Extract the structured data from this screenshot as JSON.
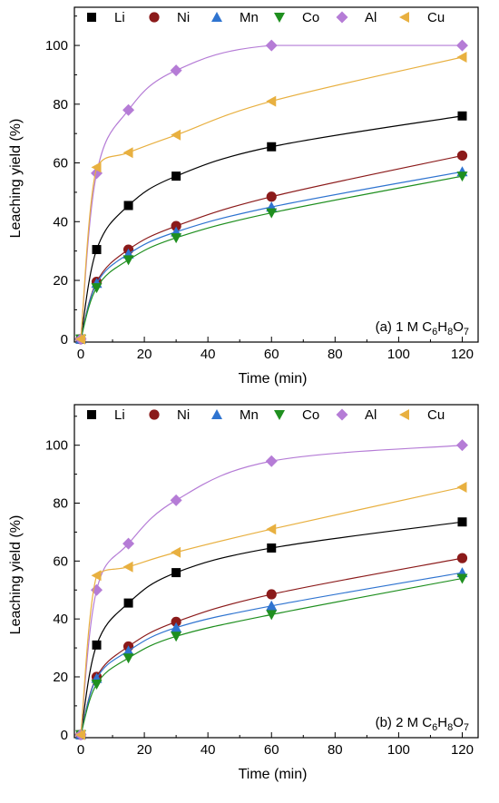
{
  "chart_data": [
    {
      "type": "scatter",
      "panel": "a",
      "annotation": {
        "prefix": "(a) 1 M C",
        "subs": [
          "6",
          "8",
          "7"
        ],
        "letters": [
          "H",
          "O"
        ]
      },
      "xlabel": "Time (min)",
      "ylabel": "Leaching yield (%)",
      "xlim": [
        -2,
        125
      ],
      "ylim": [
        -1,
        113
      ],
      "xticks": [
        0,
        20,
        40,
        60,
        80,
        100,
        120
      ],
      "yticks": [
        0,
        20,
        40,
        60,
        80,
        100
      ],
      "fit_lines": true,
      "legend_position": "top",
      "x": [
        0,
        5,
        15,
        30,
        60,
        120
      ],
      "series": [
        {
          "name": "Li",
          "marker": "square",
          "color": "#000000",
          "values": [
            0,
            30.5,
            45.5,
            55.5,
            65.5,
            76
          ]
        },
        {
          "name": "Ni",
          "marker": "circle",
          "color": "#8b1a1a",
          "values": [
            0,
            19.5,
            30.5,
            38.5,
            48.5,
            62.5
          ]
        },
        {
          "name": "Mn",
          "marker": "triangle-up",
          "color": "#2f74d0",
          "values": [
            0,
            19,
            29,
            36.5,
            45,
            57
          ]
        },
        {
          "name": "Co",
          "marker": "triangle-down",
          "color": "#1f8f1f",
          "values": [
            0,
            17.5,
            27,
            34.5,
            43,
            55.5
          ]
        },
        {
          "name": "Al",
          "marker": "diamond",
          "color": "#b57cd6",
          "values": [
            0,
            56.5,
            78,
            91.5,
            100,
            100
          ]
        },
        {
          "name": "Cu",
          "marker": "triangle-left",
          "color": "#e8b040",
          "values": [
            0,
            58.5,
            63.5,
            69.5,
            81,
            96
          ]
        }
      ]
    },
    {
      "type": "scatter",
      "panel": "b",
      "annotation": {
        "prefix": "(b) 2 M C",
        "subs": [
          "6",
          "8",
          "7"
        ],
        "letters": [
          "H",
          "O"
        ]
      },
      "xlabel": "Time (min)",
      "ylabel": "Leaching yield (%)",
      "xlim": [
        -2,
        125
      ],
      "ylim": [
        -1,
        114
      ],
      "xticks": [
        0,
        20,
        40,
        60,
        80,
        100,
        120
      ],
      "yticks": [
        0,
        20,
        40,
        60,
        80,
        100
      ],
      "fit_lines": true,
      "legend_position": "top",
      "x": [
        0,
        5,
        15,
        30,
        60,
        120
      ],
      "series": [
        {
          "name": "Li",
          "marker": "square",
          "color": "#000000",
          "values": [
            0,
            31,
            45.5,
            56,
            64.5,
            73.5
          ]
        },
        {
          "name": "Ni",
          "marker": "circle",
          "color": "#8b1a1a",
          "values": [
            0,
            20,
            30.5,
            39,
            48.5,
            61
          ]
        },
        {
          "name": "Mn",
          "marker": "triangle-up",
          "color": "#2f74d0",
          "values": [
            0,
            19.5,
            29,
            37,
            44.5,
            56
          ]
        },
        {
          "name": "Co",
          "marker": "triangle-down",
          "color": "#1f8f1f",
          "values": [
            0,
            17.5,
            26.5,
            34,
            41.5,
            54
          ]
        },
        {
          "name": "Al",
          "marker": "diamond",
          "color": "#b57cd6",
          "values": [
            0,
            50,
            66,
            81,
            94.5,
            100
          ]
        },
        {
          "name": "Cu",
          "marker": "triangle-left",
          "color": "#e8b040",
          "values": [
            0,
            55,
            58,
            63,
            71,
            85.5
          ]
        }
      ]
    }
  ]
}
